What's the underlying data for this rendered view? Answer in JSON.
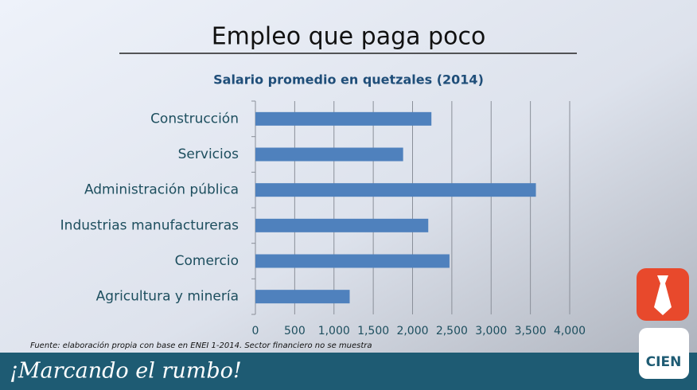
{
  "slide": {
    "heading": "Empleo que paga poco",
    "source": "Fuente: elaboración propia con base en ENEI 1-2014. Sector financiero no se muestra",
    "footer": "¡Marcando el rumbo!",
    "logo": "CIEN"
  },
  "chart_data": {
    "type": "hbar",
    "title": "Salario promedio en quetzales (2014)",
    "categories": [
      "Construcción",
      "Servicios",
      "Administración pública",
      "Industrias manufactureras",
      "Comercio",
      "Agricultura y minería"
    ],
    "values": [
      2240,
      1880,
      3570,
      2200,
      2470,
      1200
    ],
    "color": "#4f81bd",
    "xlim": [
      0,
      4000
    ],
    "xticks": [
      0,
      500,
      {
        "value": 1000,
        "label": "1,000"
      },
      {
        "value": 1500,
        "label": "1,500"
      },
      {
        "value": 2000,
        "label": "2,000"
      },
      {
        "value": 2500,
        "label": "2,500"
      },
      {
        "value": 3000,
        "label": "3,000"
      },
      {
        "value": 3500,
        "label": "3,500"
      },
      {
        "value": 4000,
        "label": "4,000"
      }
    ],
    "grid": true
  }
}
